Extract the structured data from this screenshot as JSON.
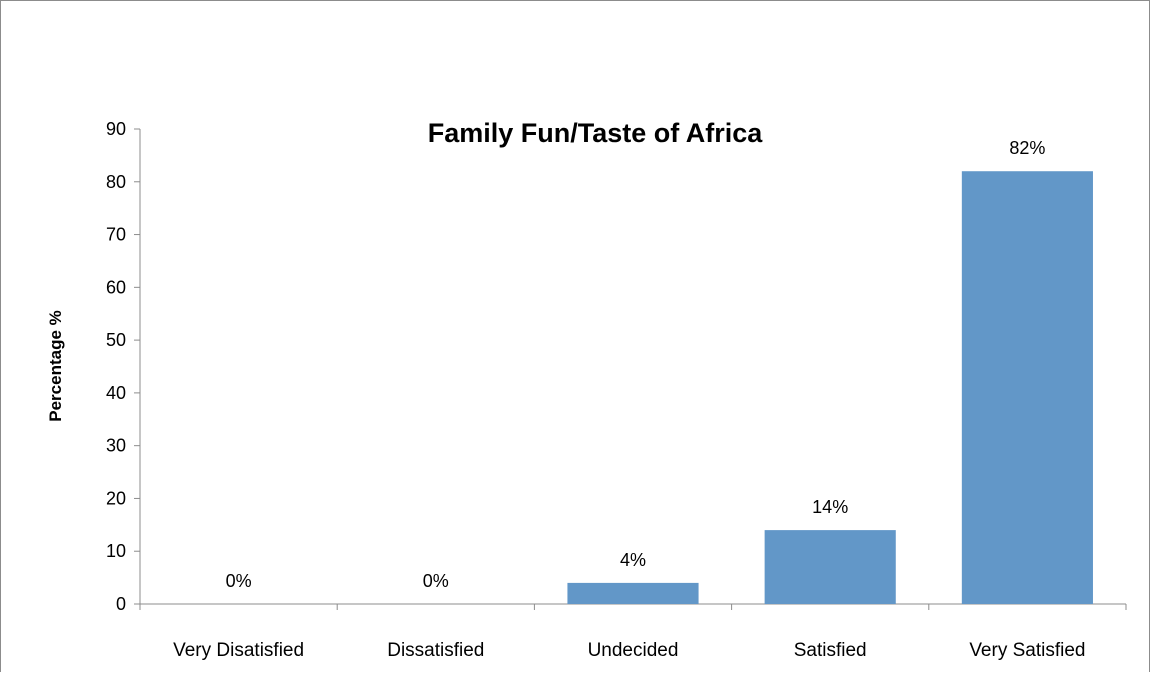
{
  "chart_data": {
    "type": "bar",
    "title": "Family Fun/Taste of Africa",
    "xlabel": "",
    "ylabel": "Percentage %",
    "categories": [
      "Very Disatisfied",
      "Dissatisfied",
      "Undecided",
      "Satisfied",
      "Very Satisfied"
    ],
    "values": [
      0,
      0,
      4,
      14,
      82
    ],
    "data_labels": [
      "0%",
      "0%",
      "4%",
      "14%",
      "82%"
    ],
    "ylim": [
      0,
      90
    ],
    "yticks": [
      "0",
      "10",
      "20",
      "30",
      "40",
      "50",
      "60",
      "70",
      "80",
      "90"
    ],
    "grid": false,
    "legend": "none",
    "bar_color": "#6297c8"
  }
}
